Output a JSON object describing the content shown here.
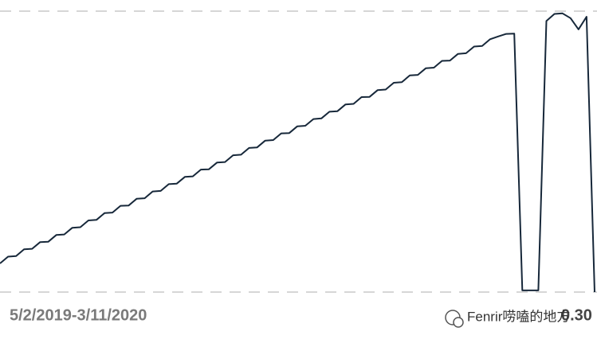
{
  "chart_data": {
    "type": "line",
    "x_range_label": "5/2/2019-3/11/2020",
    "value_label": "0.30",
    "watermark": "Fenrir唠嗑的地方",
    "color": "#17283a",
    "ylim": [
      0,
      100
    ],
    "gridlines": [
      0,
      100
    ],
    "values": [
      10.2,
      12.6,
      12.8,
      15.2,
      15.4,
      17.8,
      17.9,
      20.3,
      20.5,
      22.9,
      23.1,
      25.5,
      25.7,
      28.1,
      28.3,
      30.7,
      30.8,
      33.2,
      33.4,
      35.8,
      36.0,
      38.4,
      38.6,
      41.0,
      41.2,
      43.6,
      43.7,
      46.1,
      46.3,
      48.7,
      48.9,
      51.3,
      51.5,
      53.9,
      54.1,
      56.5,
      56.6,
      59.0,
      59.2,
      61.6,
      61.8,
      64.2,
      64.4,
      66.8,
      67.0,
      69.4,
      69.5,
      71.9,
      72.1,
      74.5,
      74.7,
      77.1,
      77.3,
      79.7,
      79.9,
      82.3,
      82.4,
      84.8,
      85.0,
      87.4,
      87.6,
      90.0,
      91.0,
      91.9,
      92.0,
      0.6,
      0.6,
      0.6,
      96.5,
      99.0,
      99.2,
      97.5,
      93.5,
      98.0,
      0.0
    ]
  }
}
